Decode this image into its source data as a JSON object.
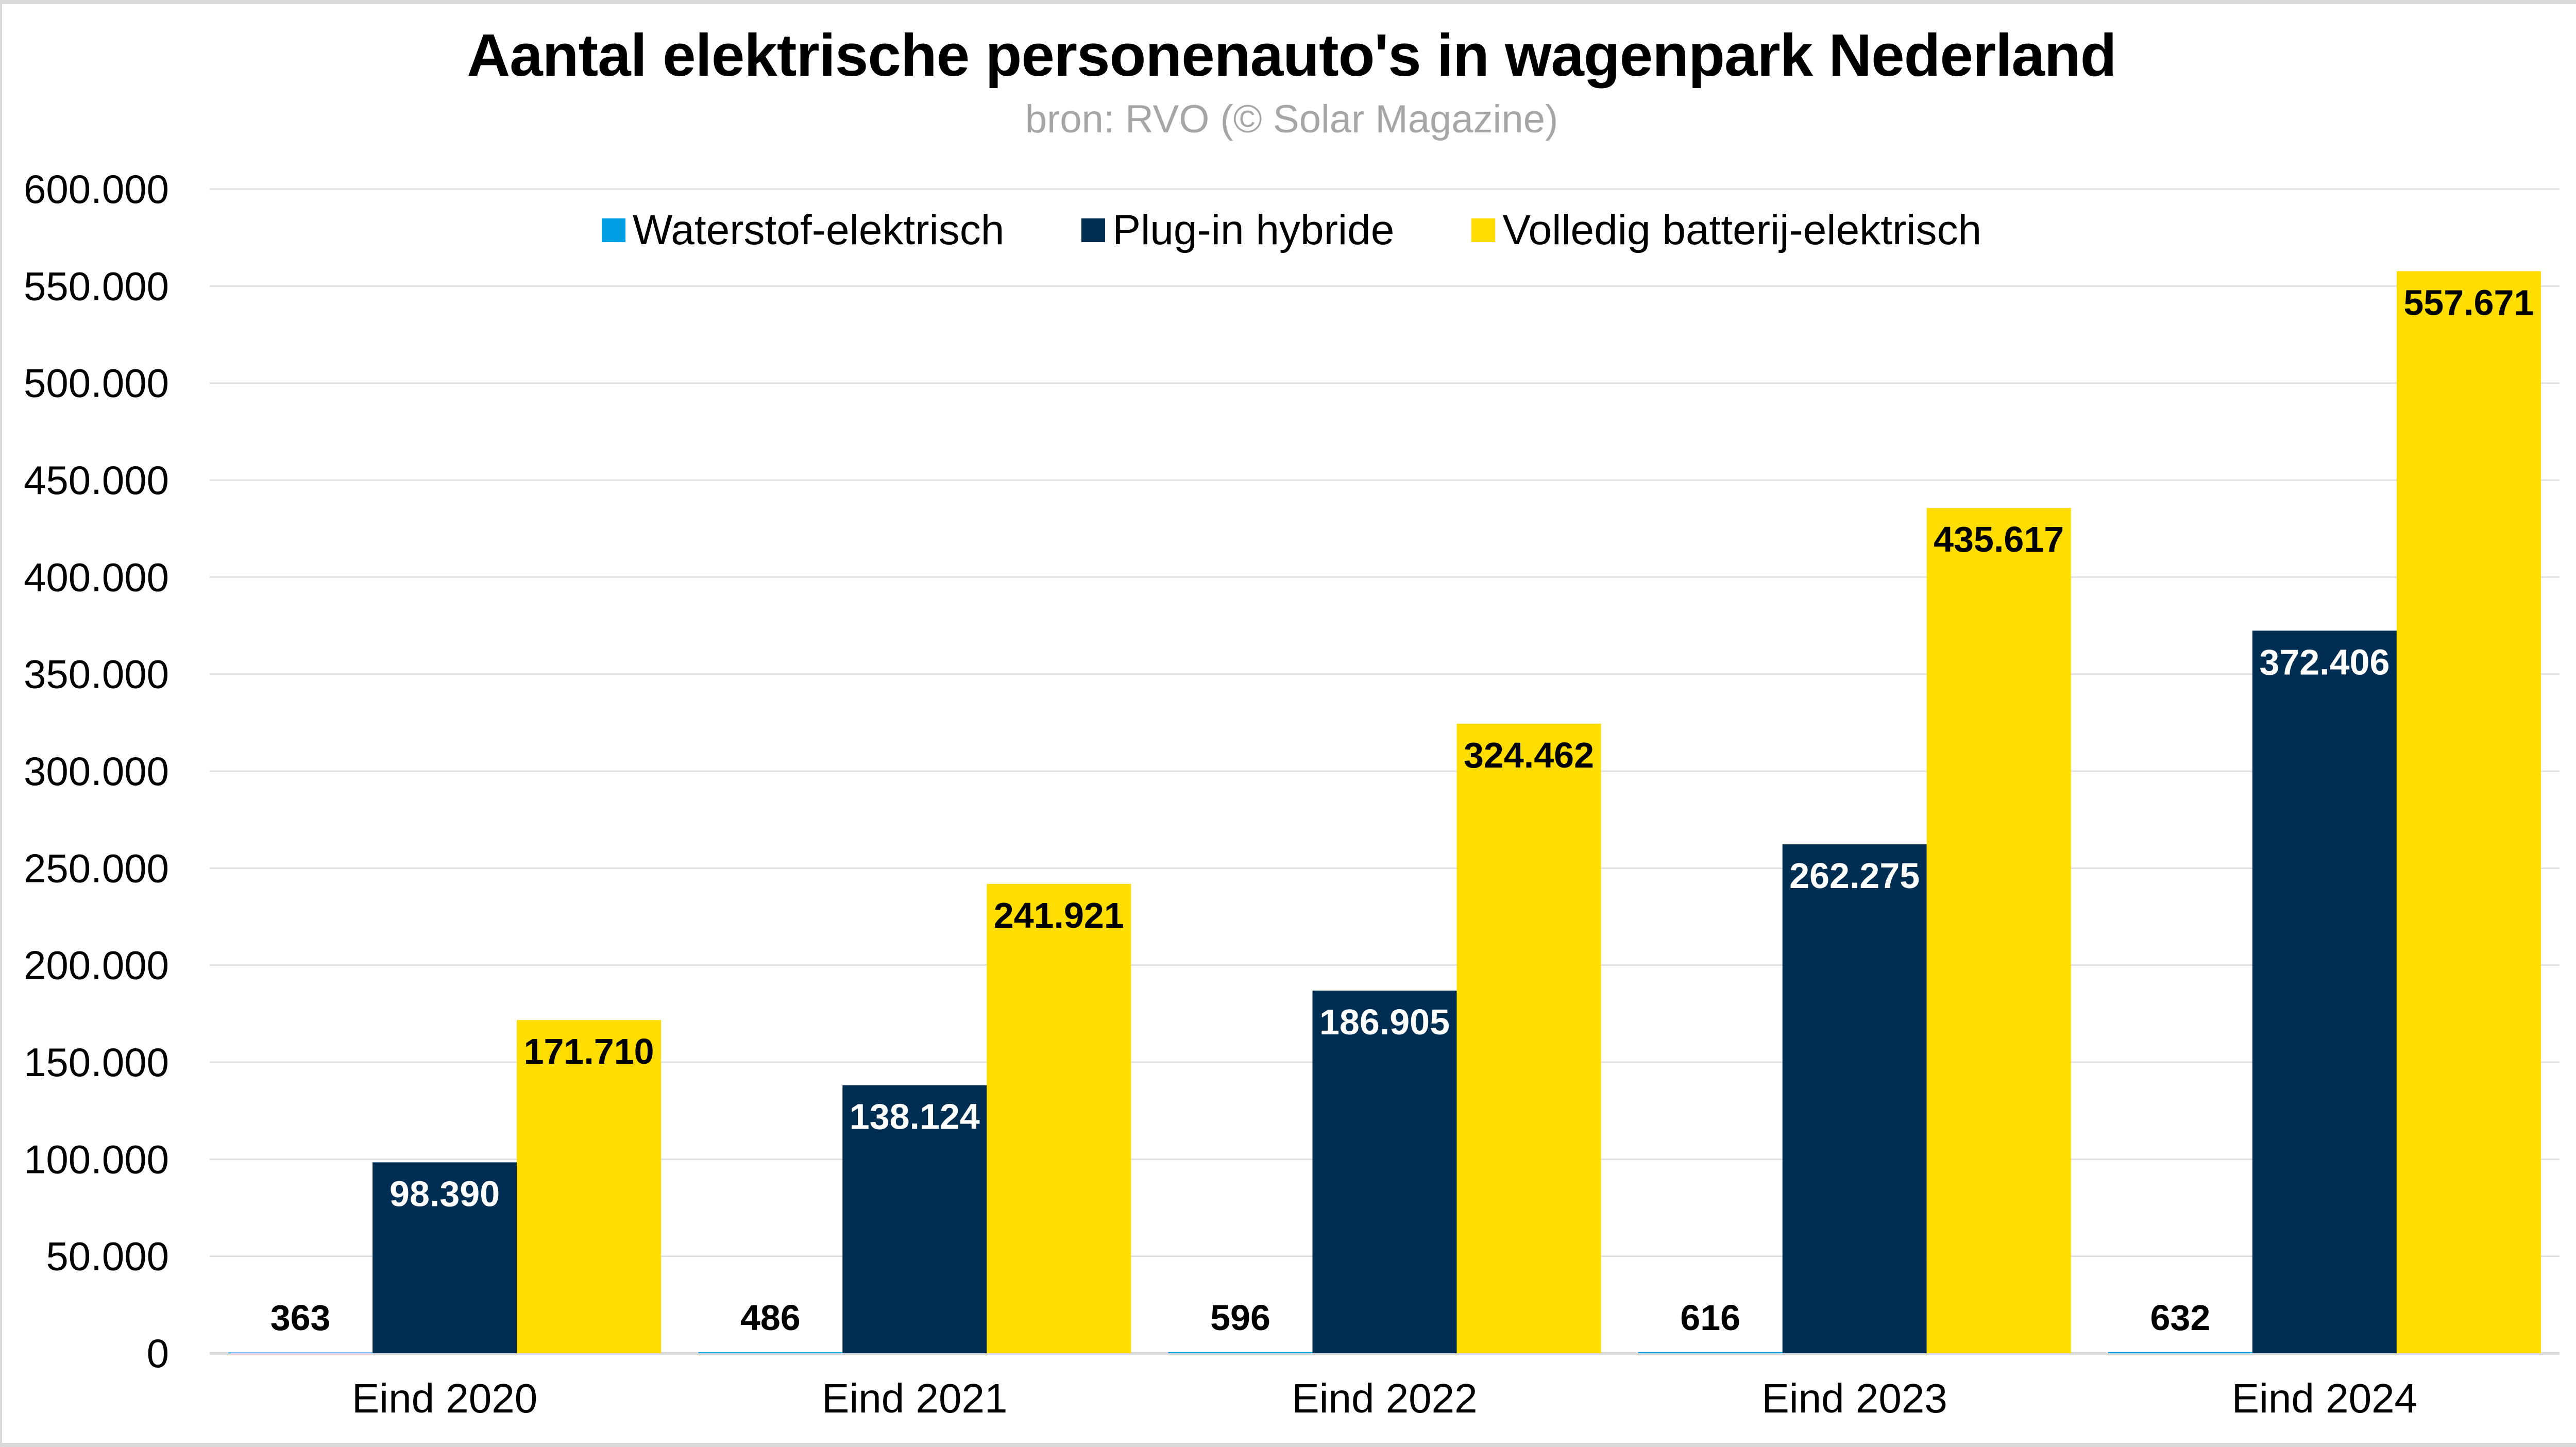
{
  "header": {
    "title": "Aantal elektrische personenauto's in wagenpark Nederland",
    "subtitle": "bron: RVO (© Solar Magazine)"
  },
  "legend": [
    {
      "label": "Waterstof-elektrisch",
      "color": "#009fe3"
    },
    {
      "label": "Plug-in hybride",
      "color": "#002e52"
    },
    {
      "label": "Volledig batterij-elektrisch",
      "color": "#ffdd00"
    }
  ],
  "chart_data": {
    "type": "bar",
    "title": "Aantal elektrische personenauto's in wagenpark Nederland",
    "subtitle": "bron: RVO (© Solar Magazine)",
    "xlabel": "",
    "ylabel": "",
    "categories": [
      "Eind 2020",
      "Eind 2021",
      "Eind 2022",
      "Eind 2023",
      "Eind 2024"
    ],
    "series": [
      {
        "name": "Waterstof-elektrisch",
        "color": "#009fe3",
        "values": [
          363,
          486,
          596,
          616,
          632
        ],
        "labels": [
          "363",
          "486",
          "596",
          "616",
          "632"
        ],
        "label_color": "#000000"
      },
      {
        "name": "Plug-in hybride",
        "color": "#002e52",
        "values": [
          98390,
          138124,
          186905,
          262275,
          372406
        ],
        "labels": [
          "98.390",
          "138.124",
          "186.905",
          "262.275",
          "372.406"
        ],
        "label_color": "#ffffff"
      },
      {
        "name": "Volledig batterij-elektrisch",
        "color": "#ffdd00",
        "values": [
          171710,
          241921,
          324462,
          435617,
          557671
        ],
        "labels": [
          "171.710",
          "241.921",
          "324.462",
          "435.617",
          "557.671"
        ],
        "label_color": "#000000"
      }
    ],
    "ylim": [
      0,
      600000
    ],
    "yticks": [
      0,
      50000,
      100000,
      150000,
      200000,
      250000,
      300000,
      350000,
      400000,
      450000,
      500000,
      550000,
      600000
    ],
    "ytick_labels": [
      "0",
      "50.000",
      "100.000",
      "150.000",
      "200.000",
      "250.000",
      "300.000",
      "350.000",
      "400.000",
      "450.000",
      "500.000",
      "550.000",
      "600.000"
    ],
    "grid": true,
    "legend_position": "top-center"
  }
}
